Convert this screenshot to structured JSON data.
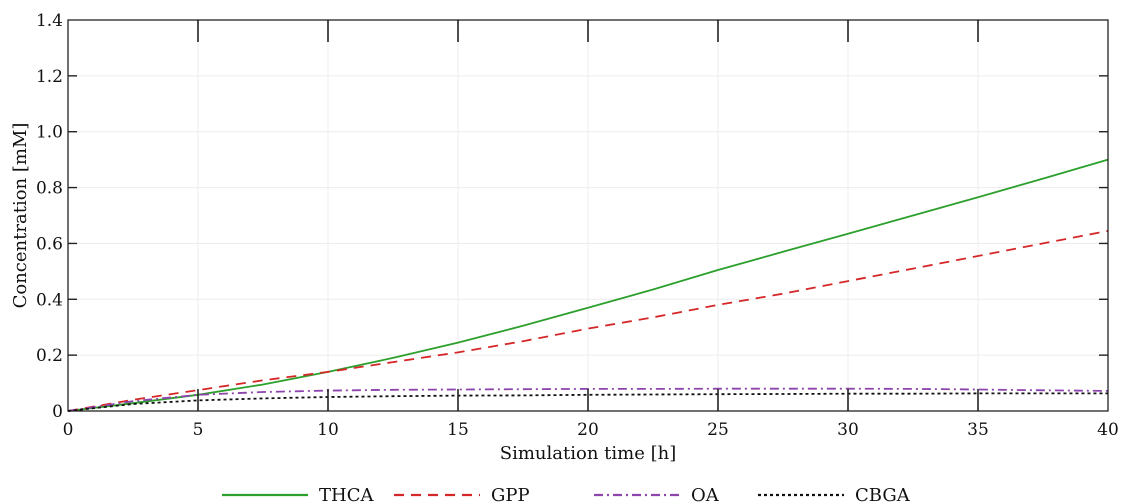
{
  "chart_data": {
    "type": "line",
    "title": "",
    "xlabel": "Simulation time [h]",
    "ylabel": "Concentration [mM]",
    "xlim": [
      0,
      40
    ],
    "ylim": [
      0,
      1.4
    ],
    "xticks": [
      "0",
      "5",
      "10",
      "15",
      "20",
      "25",
      "30",
      "35",
      "40"
    ],
    "yticks": [
      "0",
      "0.2",
      "0.4",
      "0.6",
      "0.8",
      "1.0",
      "1.2",
      "1.4"
    ],
    "grid": true,
    "legend_position": "bottom",
    "x": [
      0,
      2.5,
      5,
      7.5,
      10,
      12.5,
      15,
      17.5,
      20,
      22.5,
      25,
      27.5,
      30,
      32.5,
      35,
      37.5,
      40
    ],
    "series": [
      {
        "name": "THCA",
        "color": "#2ca02c",
        "dash": "solid",
        "values": [
          0,
          0.028,
          0.058,
          0.095,
          0.14,
          0.19,
          0.245,
          0.305,
          0.37,
          0.435,
          0.505,
          0.57,
          0.635,
          0.7,
          0.765,
          0.832,
          0.9
        ]
      },
      {
        "name": "GPP",
        "color": "#d62728",
        "dash": "dashed",
        "values": [
          0,
          0.04,
          0.075,
          0.11,
          0.14,
          0.175,
          0.21,
          0.25,
          0.295,
          0.335,
          0.38,
          0.42,
          0.465,
          0.51,
          0.555,
          0.6,
          0.645
        ]
      },
      {
        "name": "OA",
        "color": "#8e44ad",
        "dash": "dashdot",
        "values": [
          0,
          0.035,
          0.058,
          0.068,
          0.073,
          0.076,
          0.077,
          0.078,
          0.079,
          0.079,
          0.08,
          0.08,
          0.08,
          0.079,
          0.077,
          0.074,
          0.072
        ]
      },
      {
        "name": "CBGA",
        "color": "#111111",
        "dash": "dotted",
        "values": [
          0,
          0.025,
          0.038,
          0.045,
          0.05,
          0.053,
          0.055,
          0.056,
          0.058,
          0.059,
          0.06,
          0.061,
          0.062,
          0.062,
          0.063,
          0.063,
          0.063
        ]
      }
    ]
  }
}
